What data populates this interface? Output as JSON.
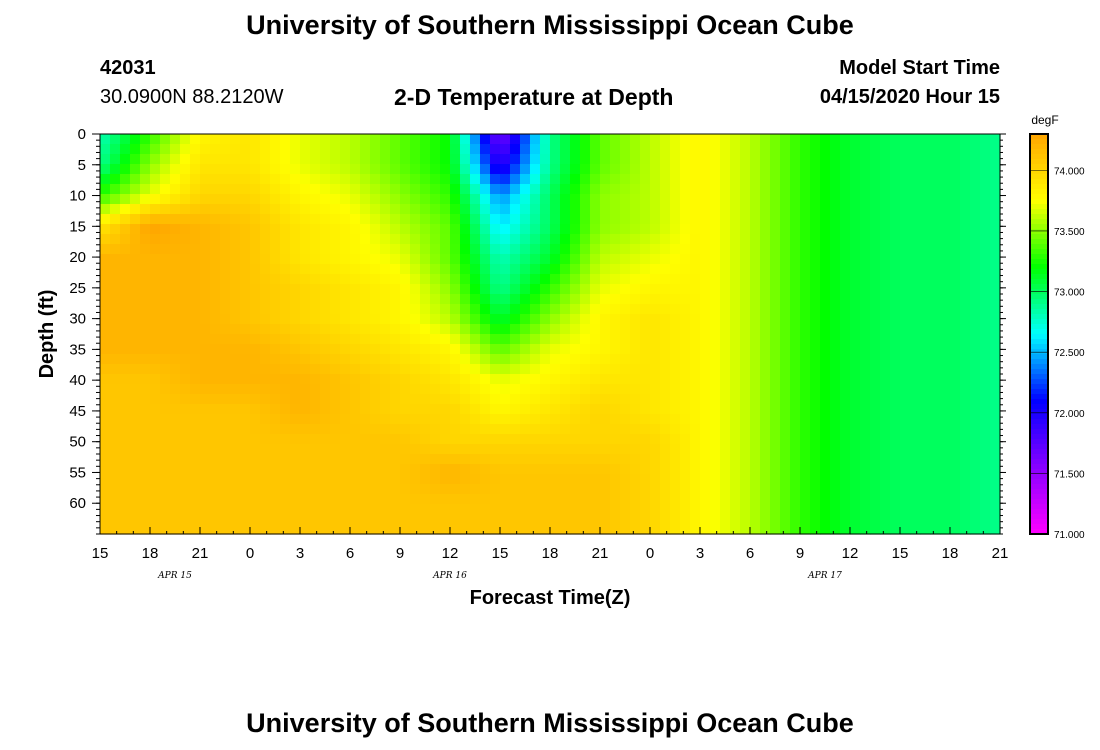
{
  "header": {
    "title_top": "University of Southern Mississippi Ocean Cube",
    "station_id": "42031",
    "coords": "30.0900N 88.2120W",
    "plot_title": "2-D Temperature at Depth",
    "model_start_label": "Model Start Time",
    "model_start_value": "04/15/2020 Hour 15",
    "title_bottom": "University of Southern Mississippi Ocean Cube"
  },
  "colors": {
    "palette": [
      "#ff00ff",
      "#8800ff",
      "#0000ff",
      "#00ffff",
      "#00ff00",
      "#ffff00",
      "#ffa500"
    ]
  },
  "chart_data": {
    "type": "heatmap",
    "title": "2-D Temperature at Depth",
    "xlabel": "Forecast Time(Z)",
    "ylabel": "Depth (ft)",
    "x_ticks": [
      "15",
      "18",
      "21",
      "0",
      "3",
      "6",
      "9",
      "12",
      "15",
      "18",
      "21",
      "0",
      "3",
      "6",
      "9",
      "12",
      "15",
      "18",
      "21"
    ],
    "date_labels": [
      {
        "text": "APR 15",
        "tick_index": 1.5
      },
      {
        "text": "APR 16",
        "tick_index": 7
      },
      {
        "text": "APR 17",
        "tick_index": 14.5
      }
    ],
    "y_ticks": [
      "0",
      "5",
      "10",
      "15",
      "20",
      "25",
      "30",
      "35",
      "40",
      "45",
      "50",
      "55",
      "60"
    ],
    "ylim": [
      0,
      65
    ],
    "x_range_hours": [
      0,
      54
    ],
    "colorbar": {
      "unit": "degF",
      "ticks": [
        "74.000",
        "73.500",
        "73.000",
        "72.500",
        "72.000",
        "71.500",
        "71.000"
      ],
      "range": [
        71.0,
        74.3
      ]
    },
    "depths_ft": [
      0,
      5,
      10,
      15,
      20,
      25,
      30,
      35,
      40,
      45,
      50,
      55,
      60,
      65
    ],
    "hours": [
      0,
      3,
      6,
      9,
      12,
      15,
      18,
      21,
      24,
      27,
      30,
      33,
      36,
      39,
      42,
      45,
      48,
      51,
      54
    ],
    "values_degF": [
      [
        72.8,
        73.3,
        73.8,
        73.9,
        73.7,
        73.6,
        73.4,
        73.2,
        71.6,
        72.9,
        73.4,
        73.6,
        73.8,
        73.6,
        73.3,
        73.1,
        73.0,
        73.0,
        72.9
      ],
      [
        72.9,
        73.5,
        73.9,
        73.9,
        73.7,
        73.6,
        73.4,
        73.2,
        71.9,
        72.9,
        73.4,
        73.6,
        73.8,
        73.6,
        73.3,
        73.1,
        73.0,
        73.0,
        72.9
      ],
      [
        73.3,
        73.7,
        74.0,
        74.0,
        73.8,
        73.7,
        73.5,
        73.3,
        72.4,
        73.0,
        73.5,
        73.6,
        73.8,
        73.6,
        73.3,
        73.1,
        73.0,
        73.0,
        72.9
      ],
      [
        73.9,
        74.3,
        74.2,
        74.1,
        73.9,
        73.8,
        73.6,
        73.4,
        72.6,
        73.0,
        73.5,
        73.6,
        73.8,
        73.6,
        73.3,
        73.1,
        73.0,
        73.0,
        72.9
      ],
      [
        74.2,
        74.2,
        74.2,
        74.1,
        73.9,
        73.8,
        73.7,
        73.4,
        72.8,
        73.1,
        73.6,
        73.7,
        73.8,
        73.6,
        73.3,
        73.1,
        73.0,
        73.0,
        72.9
      ],
      [
        74.2,
        74.2,
        74.2,
        74.1,
        74.0,
        73.9,
        73.8,
        73.5,
        72.9,
        73.3,
        73.7,
        73.8,
        73.8,
        73.6,
        73.3,
        73.1,
        73.0,
        73.0,
        72.9
      ],
      [
        74.2,
        74.2,
        74.2,
        74.1,
        74.0,
        73.9,
        73.8,
        73.6,
        73.1,
        73.5,
        73.8,
        73.9,
        73.8,
        73.6,
        73.3,
        73.1,
        73.0,
        73.0,
        72.9
      ],
      [
        74.2,
        74.2,
        74.2,
        74.2,
        74.1,
        74.0,
        73.9,
        73.8,
        73.4,
        73.7,
        73.8,
        73.9,
        73.8,
        73.6,
        73.3,
        73.1,
        73.0,
        73.0,
        72.9
      ],
      [
        74.1,
        74.1,
        74.2,
        74.2,
        74.2,
        74.1,
        74.0,
        73.9,
        73.7,
        73.8,
        73.9,
        73.9,
        73.8,
        73.6,
        73.3,
        73.1,
        73.0,
        73.0,
        72.9
      ],
      [
        74.1,
        74.1,
        74.1,
        74.1,
        74.2,
        74.1,
        74.0,
        74.0,
        73.8,
        73.9,
        74.0,
        73.9,
        73.8,
        73.6,
        73.3,
        73.1,
        73.0,
        73.0,
        72.9
      ],
      [
        74.1,
        74.1,
        74.1,
        74.1,
        74.1,
        74.1,
        74.1,
        74.0,
        74.0,
        74.0,
        74.0,
        74.0,
        73.8,
        73.6,
        73.3,
        73.1,
        73.0,
        73.0,
        72.9
      ],
      [
        74.1,
        74.1,
        74.1,
        74.1,
        74.1,
        74.1,
        74.1,
        74.2,
        74.1,
        74.1,
        74.1,
        74.0,
        73.8,
        73.6,
        73.3,
        73.1,
        73.0,
        73.0,
        72.9
      ],
      [
        74.1,
        74.1,
        74.1,
        74.1,
        74.1,
        74.1,
        74.1,
        74.1,
        74.1,
        74.1,
        74.1,
        74.0,
        73.8,
        73.6,
        73.3,
        73.1,
        73.0,
        73.0,
        72.9
      ],
      [
        74.1,
        74.1,
        74.1,
        74.1,
        74.1,
        74.1,
        74.1,
        74.1,
        74.1,
        74.1,
        74.1,
        74.0,
        73.8,
        73.6,
        73.3,
        73.1,
        73.0,
        73.0,
        72.9
      ]
    ]
  }
}
